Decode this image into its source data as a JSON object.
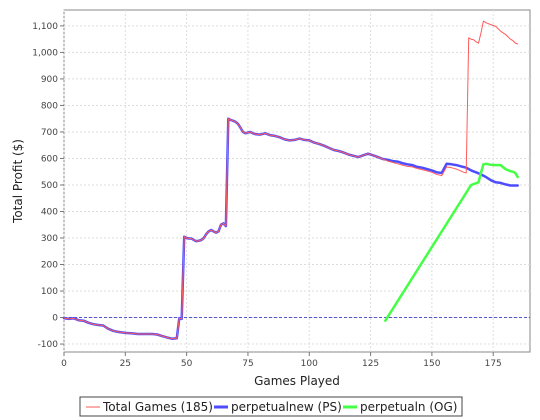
{
  "chart_data": {
    "type": "line",
    "title": "",
    "xlabel": "Games Played",
    "ylabel": "Total Profit  ($)",
    "xlim": [
      0,
      190
    ],
    "ylim": [
      -130,
      1160
    ],
    "xticks": [
      0,
      25,
      50,
      75,
      100,
      125,
      150,
      175
    ],
    "yticks": [
      -100,
      0,
      100,
      200,
      300,
      400,
      500,
      600,
      700,
      800,
      900,
      1000,
      1100
    ],
    "xtick_labels": [
      "0",
      "25",
      "50",
      "75",
      "100",
      "125",
      "150",
      "175"
    ],
    "ytick_labels": [
      "-100",
      "0",
      "100",
      "200",
      "300",
      "400",
      "500",
      "600",
      "700",
      "800",
      "900",
      "1,000",
      "1,100"
    ],
    "grid": true,
    "zero_line": true,
    "legend_position": "bottom",
    "series": [
      {
        "name": "perpetualnew (PS)",
        "color": "#4d4dff",
        "points": [
          [
            0,
            -2
          ],
          [
            2,
            -5
          ],
          [
            4,
            -3
          ],
          [
            6,
            -10
          ],
          [
            8,
            -12
          ],
          [
            10,
            -20
          ],
          [
            12,
            -25
          ],
          [
            14,
            -28
          ],
          [
            16,
            -30
          ],
          [
            18,
            -42
          ],
          [
            20,
            -50
          ],
          [
            22,
            -54
          ],
          [
            25,
            -58
          ],
          [
            28,
            -60
          ],
          [
            30,
            -62
          ],
          [
            33,
            -62
          ],
          [
            36,
            -62
          ],
          [
            38,
            -64
          ],
          [
            40,
            -70
          ],
          [
            42,
            -75
          ],
          [
            44,
            -80
          ],
          [
            46,
            -78
          ],
          [
            47,
            -2
          ],
          [
            48,
            -5
          ],
          [
            49,
            305
          ],
          [
            50,
            300
          ],
          [
            51,
            298
          ],
          [
            52,
            298
          ],
          [
            53,
            292
          ],
          [
            54,
            288
          ],
          [
            55,
            290
          ],
          [
            56,
            292
          ],
          [
            57,
            300
          ],
          [
            58,
            315
          ],
          [
            59,
            325
          ],
          [
            60,
            330
          ],
          [
            61,
            325
          ],
          [
            62,
            320
          ],
          [
            63,
            325
          ],
          [
            64,
            350
          ],
          [
            65,
            355
          ],
          [
            66,
            345
          ],
          [
            67,
            750
          ],
          [
            68,
            745
          ],
          [
            69,
            742
          ],
          [
            70,
            738
          ],
          [
            71,
            730
          ],
          [
            72,
            715
          ],
          [
            73,
            700
          ],
          [
            74,
            695
          ],
          [
            75,
            698
          ],
          [
            76,
            700
          ],
          [
            77,
            695
          ],
          [
            78,
            692
          ],
          [
            80,
            690
          ],
          [
            82,
            695
          ],
          [
            84,
            688
          ],
          [
            86,
            685
          ],
          [
            88,
            680
          ],
          [
            90,
            672
          ],
          [
            92,
            668
          ],
          [
            94,
            670
          ],
          [
            96,
            675
          ],
          [
            98,
            670
          ],
          [
            100,
            668
          ],
          [
            102,
            660
          ],
          [
            104,
            655
          ],
          [
            106,
            648
          ],
          [
            108,
            640
          ],
          [
            110,
            632
          ],
          [
            112,
            628
          ],
          [
            114,
            622
          ],
          [
            116,
            615
          ],
          [
            118,
            610
          ],
          [
            120,
            605
          ],
          [
            122,
            612
          ],
          [
            124,
            618
          ],
          [
            126,
            612
          ],
          [
            128,
            605
          ],
          [
            130,
            598
          ],
          [
            132,
            595
          ],
          [
            134,
            590
          ],
          [
            136,
            588
          ],
          [
            138,
            582
          ],
          [
            140,
            578
          ],
          [
            142,
            575
          ],
          [
            144,
            568
          ],
          [
            146,
            565
          ],
          [
            148,
            560
          ],
          [
            150,
            555
          ],
          [
            152,
            548
          ],
          [
            154,
            545
          ],
          [
            156,
            580
          ],
          [
            158,
            578
          ],
          [
            160,
            575
          ],
          [
            162,
            570
          ],
          [
            164,
            565
          ],
          [
            166,
            555
          ],
          [
            168,
            548
          ],
          [
            170,
            540
          ],
          [
            172,
            530
          ],
          [
            174,
            518
          ],
          [
            176,
            510
          ],
          [
            178,
            508
          ],
          [
            180,
            502
          ],
          [
            182,
            498
          ],
          [
            184,
            498
          ],
          [
            185,
            498
          ]
        ]
      },
      {
        "name": "perpetualn (OG)",
        "color": "#44ff44",
        "points": [
          [
            131,
            -12
          ],
          [
            166,
            500
          ],
          [
            169,
            510
          ],
          [
            170,
            545
          ],
          [
            171,
            578
          ],
          [
            172,
            580
          ],
          [
            174,
            576
          ],
          [
            176,
            575
          ],
          [
            178,
            575
          ],
          [
            180,
            560
          ],
          [
            182,
            552
          ],
          [
            183,
            550
          ],
          [
            184,
            545
          ],
          [
            185,
            530
          ]
        ]
      },
      {
        "name": "Total Games (185)",
        "color": "#ff5a5a",
        "points": [
          [
            0,
            -2
          ],
          [
            2,
            -5
          ],
          [
            4,
            -3
          ],
          [
            6,
            -10
          ],
          [
            8,
            -12
          ],
          [
            10,
            -20
          ],
          [
            12,
            -25
          ],
          [
            14,
            -28
          ],
          [
            16,
            -30
          ],
          [
            18,
            -42
          ],
          [
            20,
            -50
          ],
          [
            22,
            -54
          ],
          [
            25,
            -58
          ],
          [
            28,
            -60
          ],
          [
            30,
            -62
          ],
          [
            33,
            -62
          ],
          [
            36,
            -62
          ],
          [
            38,
            -64
          ],
          [
            40,
            -70
          ],
          [
            42,
            -75
          ],
          [
            44,
            -80
          ],
          [
            46,
            -78
          ],
          [
            47,
            -2
          ],
          [
            48,
            -5
          ],
          [
            49,
            305
          ],
          [
            50,
            300
          ],
          [
            51,
            298
          ],
          [
            52,
            298
          ],
          [
            53,
            292
          ],
          [
            54,
            288
          ],
          [
            55,
            290
          ],
          [
            56,
            292
          ],
          [
            57,
            300
          ],
          [
            58,
            315
          ],
          [
            59,
            325
          ],
          [
            60,
            330
          ],
          [
            61,
            325
          ],
          [
            62,
            320
          ],
          [
            63,
            325
          ],
          [
            64,
            350
          ],
          [
            65,
            355
          ],
          [
            66,
            345
          ],
          [
            67,
            750
          ],
          [
            68,
            745
          ],
          [
            69,
            742
          ],
          [
            70,
            738
          ],
          [
            71,
            730
          ],
          [
            72,
            715
          ],
          [
            73,
            700
          ],
          [
            74,
            695
          ],
          [
            75,
            698
          ],
          [
            76,
            700
          ],
          [
            77,
            695
          ],
          [
            78,
            692
          ],
          [
            80,
            690
          ],
          [
            82,
            695
          ],
          [
            84,
            688
          ],
          [
            86,
            685
          ],
          [
            88,
            680
          ],
          [
            90,
            672
          ],
          [
            92,
            668
          ],
          [
            94,
            670
          ],
          [
            96,
            675
          ],
          [
            98,
            670
          ],
          [
            100,
            668
          ],
          [
            102,
            660
          ],
          [
            104,
            655
          ],
          [
            106,
            648
          ],
          [
            108,
            640
          ],
          [
            110,
            632
          ],
          [
            112,
            628
          ],
          [
            114,
            622
          ],
          [
            116,
            615
          ],
          [
            118,
            610
          ],
          [
            120,
            605
          ],
          [
            122,
            612
          ],
          [
            124,
            618
          ],
          [
            126,
            612
          ],
          [
            128,
            605
          ],
          [
            130,
            598
          ],
          [
            132,
            590
          ],
          [
            134,
            585
          ],
          [
            136,
            580
          ],
          [
            138,
            575
          ],
          [
            140,
            570
          ],
          [
            142,
            568
          ],
          [
            144,
            562
          ],
          [
            146,
            558
          ],
          [
            148,
            553
          ],
          [
            150,
            548
          ],
          [
            152,
            540
          ],
          [
            154,
            535
          ],
          [
            156,
            568
          ],
          [
            158,
            565
          ],
          [
            160,
            560
          ],
          [
            162,
            552
          ],
          [
            163,
            548
          ],
          [
            164,
            545
          ],
          [
            165,
            1055
          ],
          [
            166,
            1050
          ],
          [
            167,
            1048
          ],
          [
            168,
            1040
          ],
          [
            169,
            1035
          ],
          [
            170,
            1072
          ],
          [
            171,
            1118
          ],
          [
            172,
            1112
          ],
          [
            174,
            1105
          ],
          [
            176,
            1098
          ],
          [
            178,
            1080
          ],
          [
            180,
            1068
          ],
          [
            182,
            1050
          ],
          [
            183,
            1045
          ],
          [
            184,
            1035
          ],
          [
            185,
            1032
          ]
        ]
      }
    ],
    "legend": [
      {
        "label": "Total Games (185)",
        "color": "#ff5a5a",
        "width": 1
      },
      {
        "label": "perpetualnew (PS)",
        "color": "#4d4dff",
        "width": 3
      },
      {
        "label": "perpetualn (OG)",
        "color": "#44ff44",
        "width": 3
      }
    ]
  }
}
